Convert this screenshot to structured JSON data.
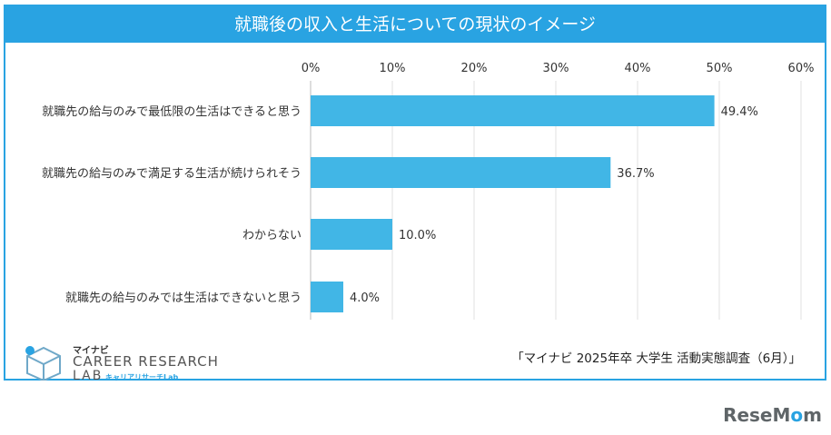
{
  "title": "就職後の収入と生活についての現状のイメージ",
  "source_note": "「マイナビ 2025年卒 大学生 活動実態調査（6月）」",
  "brand": {
    "small_top": "マイナビ",
    "line1": "CAREER RESEARCH",
    "line2": "LAB",
    "sub": "キャリアリサーチLab"
  },
  "watermark": "ReseMom",
  "colors": {
    "accent": "#29a3e2",
    "bar": "#41b6e6"
  },
  "chart_data": {
    "type": "bar",
    "orientation": "horizontal",
    "categories": [
      "就職先の給与のみで最低限の生活はできると思う",
      "就職先の給与のみで満足する生活が続けられそう",
      "わからない",
      "就職先の給与のみでは生活はできないと思う"
    ],
    "values": [
      49.4,
      36.7,
      10.0,
      4.0
    ],
    "value_labels": [
      "49.4%",
      "36.7%",
      "10.0%",
      "4.0%"
    ],
    "xlim": [
      0,
      60
    ],
    "ticks": [
      "0%",
      "10%",
      "20%",
      "30%",
      "40%",
      "50%",
      "60%"
    ],
    "grid": true,
    "axis_position": "top"
  }
}
